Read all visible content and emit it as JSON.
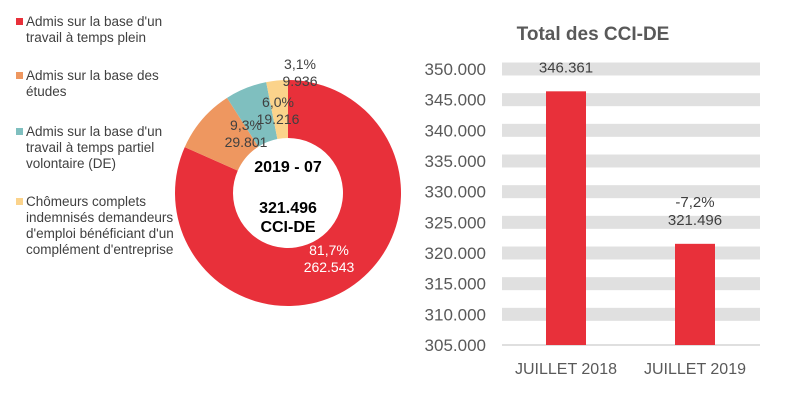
{
  "chart_data": [
    {
      "type": "pie",
      "donut": true,
      "center_label": {
        "period": "2019 - 07",
        "total": "321.496",
        "unit": "CCI-DE"
      },
      "legend_placement": "left",
      "slices": [
        {
          "name": "Admis sur la base d'un travail à temps plein",
          "value": 262543,
          "value_label": "262.543",
          "percent_label": "81,7%",
          "color": "#E8303A"
        },
        {
          "name": "Admis sur la base des études",
          "value": 29801,
          "value_label": "29.801",
          "percent_label": "9,3%",
          "color": "#EE9760"
        },
        {
          "name": "Admis sur la base d'un travail à temps partiel volontaire (DE)",
          "value": 19216,
          "value_label": "19.216",
          "percent_label": "6,0%",
          "color": "#7FBFBF"
        },
        {
          "name": "Chômeurs complets indemnisés demandeurs d'emploi bénéficiant d'un complément d'entreprise",
          "value": 9936,
          "value_label": "9.936",
          "percent_label": "3,1%",
          "color": "#FBD38B"
        }
      ]
    },
    {
      "type": "bar",
      "title": "Total des CCI-DE",
      "categories": [
        "JUILLET 2018",
        "JUILLET 2019"
      ],
      "values": [
        346361,
        321496
      ],
      "value_labels": [
        "346.361",
        "321.496"
      ],
      "annotations": [
        "",
        "-7,2%"
      ],
      "ylim": [
        305000,
        350000
      ],
      "yticks": [
        "305.000",
        "310.000",
        "315.000",
        "320.000",
        "325.000",
        "330.000",
        "335.000",
        "340.000",
        "345.000",
        "350.000"
      ],
      "bar_color": "#E8303A",
      "grid": "banded"
    }
  ]
}
